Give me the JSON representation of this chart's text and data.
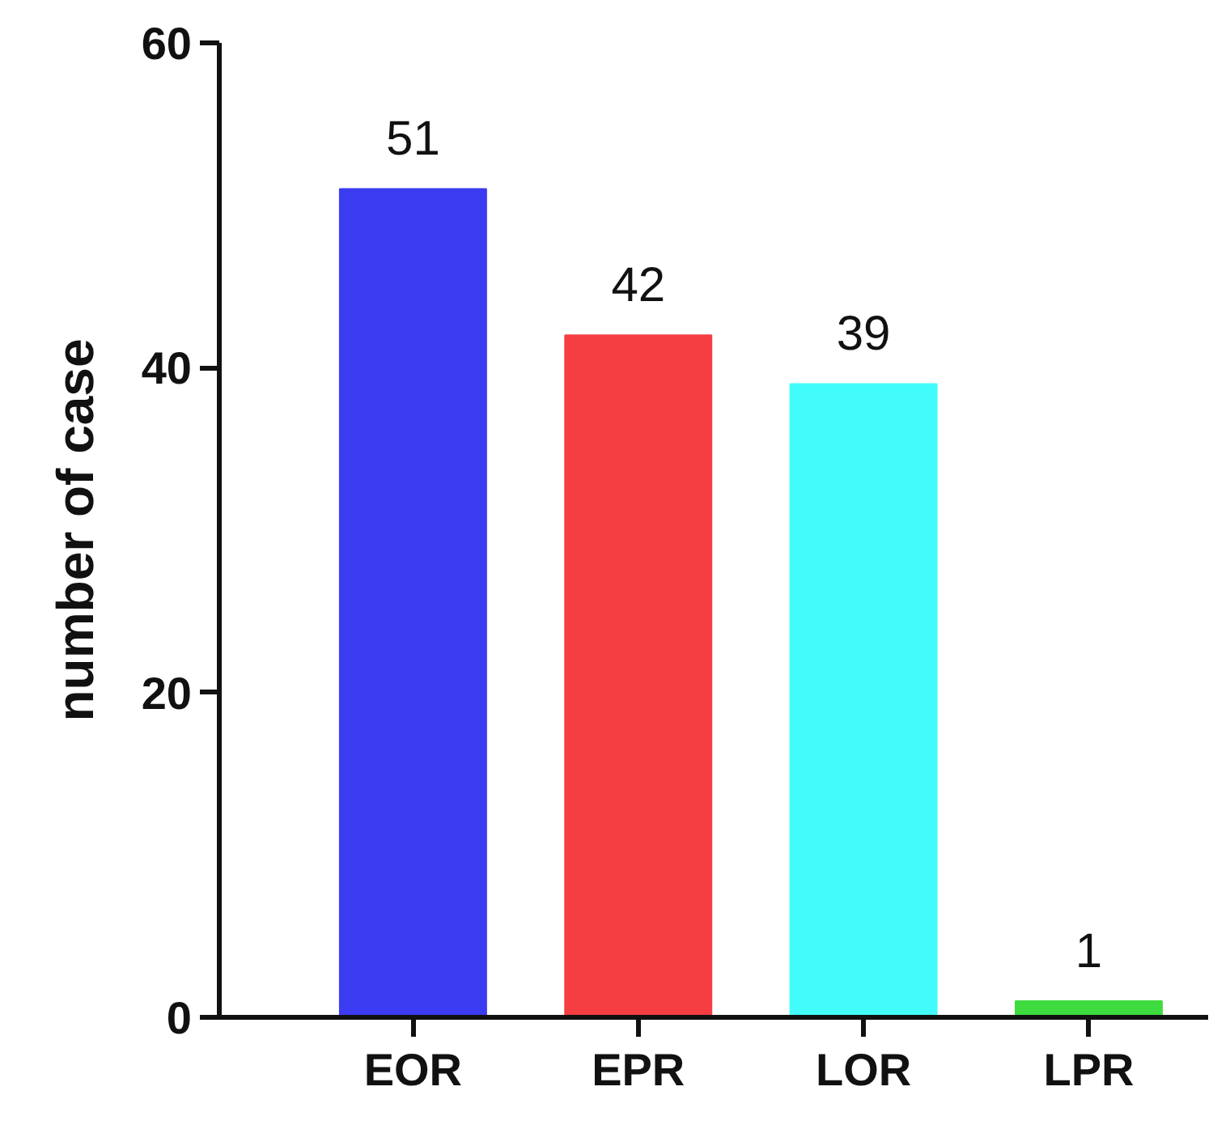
{
  "chart_data": {
    "type": "bar",
    "ylabel": "number of case",
    "categories": [
      "EOR",
      "EPR",
      "LOR",
      "LPR"
    ],
    "values": [
      51,
      42,
      39,
      1
    ],
    "colors": [
      "#3b3bf2",
      "#f53e42",
      "#42fcfc",
      "#3fdc3f"
    ],
    "ylim": [
      0,
      60
    ],
    "yticks": [
      0,
      20,
      40,
      60
    ],
    "grid": false,
    "data_labels": true
  }
}
